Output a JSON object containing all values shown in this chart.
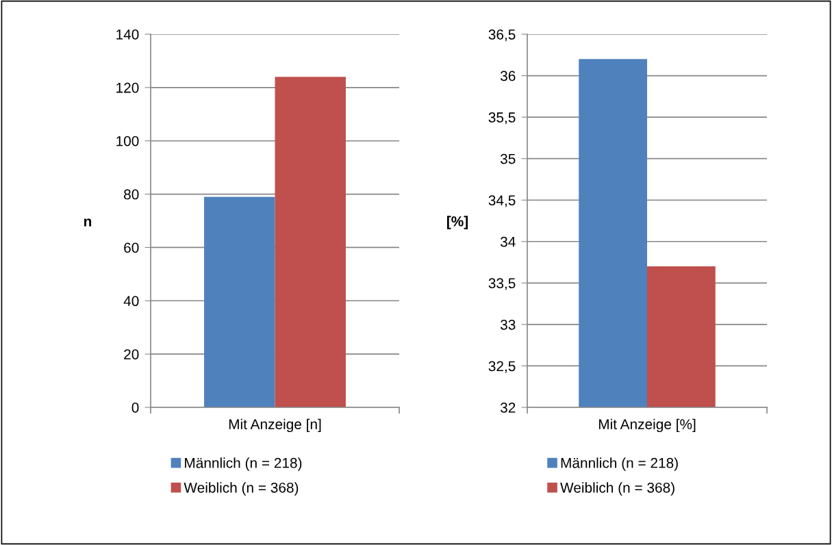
{
  "chart_data": [
    {
      "type": "bar",
      "categories": [
        "Mit Anzeige [n]"
      ],
      "ylabel": "n",
      "series": [
        {
          "name": "Männlich (n = 218)",
          "color": "#4f81bd",
          "values": [
            79
          ]
        },
        {
          "name": "Weiblich (n = 368)",
          "color": "#c0504d",
          "values": [
            124
          ]
        }
      ],
      "ylim": [
        0,
        140
      ],
      "yticks": [
        0,
        20,
        40,
        60,
        80,
        100,
        120,
        140
      ],
      "grid": "y",
      "legend": "bottom"
    },
    {
      "type": "bar",
      "categories": [
        "Mit Anzeige [%]"
      ],
      "ylabel": "[%]",
      "series": [
        {
          "name": "Männlich (n = 218)",
          "color": "#4f81bd",
          "values": [
            36.2
          ]
        },
        {
          "name": "Weiblich (n = 368)",
          "color": "#c0504d",
          "values": [
            33.7
          ]
        }
      ],
      "ylim": [
        32,
        36.5
      ],
      "yticks": [
        32,
        {
          "value": 32.5,
          "label": "32,5"
        },
        33,
        {
          "value": 33.5,
          "label": "33,5"
        },
        34,
        {
          "value": 34.5,
          "label": "34,5"
        },
        35,
        {
          "value": 35.5,
          "label": "35,5"
        },
        36,
        {
          "value": 36.5,
          "label": "36,5"
        }
      ],
      "grid": "y",
      "legend": "bottom"
    }
  ]
}
